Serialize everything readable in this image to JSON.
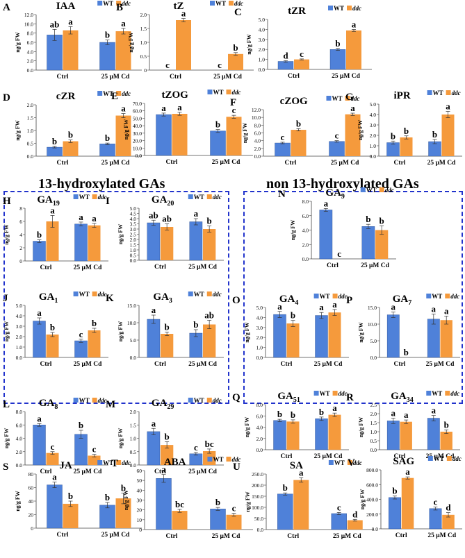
{
  "legend": {
    "wt": "WT",
    "ddc": "ddc"
  },
  "groups": [
    "Ctrl",
    "25 μM Cd"
  ],
  "ylabel": "ng/g FW",
  "colors": {
    "wt": "#4f81d9",
    "ddc": "#f59a3c",
    "error": "#333333",
    "box": "#2233cc"
  },
  "section_titles": {
    "left": "13-hydroxylated GAs",
    "right": "non 13-hydroxylated GAs"
  },
  "chart_data": [
    {
      "type": "bar",
      "panel": "A",
      "title": "IAA",
      "ticks": [
        "0.0",
        "2.0",
        "4.0",
        "6.0",
        "8.0",
        "10.0",
        "12.0"
      ],
      "ylim": [
        0,
        12
      ],
      "series": [
        {
          "name": "WT",
          "values": [
            7.6,
            6.0
          ],
          "errors": [
            1.2,
            0.5
          ],
          "letters": [
            "ab",
            "b"
          ]
        },
        {
          "name": "ddc",
          "values": [
            8.6,
            8.4
          ],
          "errors": [
            0.8,
            0.6
          ],
          "letters": [
            "a",
            "a"
          ]
        }
      ]
    },
    {
      "type": "bar",
      "panel": "B",
      "title": "tZ",
      "ticks": [
        "0",
        "0.5",
        "1.0",
        "1.5",
        "2.0"
      ],
      "ylim": [
        0,
        2
      ],
      "series": [
        {
          "name": "WT",
          "values": [
            0,
            0
          ],
          "errors": [
            0,
            0
          ],
          "letters": [
            "c",
            "c"
          ]
        },
        {
          "name": "ddc",
          "values": [
            1.8,
            0.58
          ],
          "errors": [
            0.06,
            0.05
          ],
          "letters": [
            "a",
            "b"
          ]
        }
      ]
    },
    {
      "type": "bar",
      "panel": "C",
      "title": "tZR",
      "ticks": [
        "0.0",
        "1.0",
        "2.0",
        "3.0",
        "4.0",
        "5.0"
      ],
      "ylim": [
        0,
        5
      ],
      "series": [
        {
          "name": "WT",
          "values": [
            0.8,
            2.0
          ],
          "errors": [
            0.08,
            0.1
          ],
          "letters": [
            "d",
            "b"
          ]
        },
        {
          "name": "ddc",
          "values": [
            1.0,
            3.9
          ],
          "errors": [
            0.05,
            0.1
          ],
          "letters": [
            "c",
            "a"
          ]
        }
      ]
    },
    {
      "type": "bar",
      "panel": "D",
      "title": "cZR",
      "ticks": [
        "0.0",
        "0.5",
        "1.0",
        "1.5",
        "2.0"
      ],
      "ylim": [
        0,
        2
      ],
      "series": [
        {
          "name": "WT",
          "values": [
            0.35,
            0.48
          ],
          "errors": [
            0.03,
            0.03
          ],
          "letters": [
            "b",
            "b"
          ]
        },
        {
          "name": "ddc",
          "values": [
            0.58,
            1.58
          ],
          "errors": [
            0.05,
            0.08
          ],
          "letters": [
            "b",
            "a"
          ]
        }
      ]
    },
    {
      "type": "bar",
      "panel": "E",
      "title": "tZOG",
      "ticks": [
        "0.0",
        "10.0",
        "20.0",
        "30.0",
        "40.0",
        "50.0",
        "60.0",
        "70.0"
      ],
      "ylim": [
        0,
        70
      ],
      "series": [
        {
          "name": "WT",
          "values": [
            55,
            33
          ],
          "errors": [
            2,
            2
          ],
          "letters": [
            "a",
            "b"
          ]
        },
        {
          "name": "ddc",
          "values": [
            56,
            52
          ],
          "errors": [
            2,
            2
          ],
          "letters": [
            "a",
            "c"
          ]
        }
      ]
    },
    {
      "type": "bar",
      "panel": "F",
      "title": "cZOG",
      "ticks": [
        "0.0",
        "2.0",
        "4.0",
        "6.0",
        "8.0",
        "10.0",
        "12.0"
      ],
      "ylim": [
        0,
        12
      ],
      "series": [
        {
          "name": "WT",
          "values": [
            3.4,
            3.8
          ],
          "errors": [
            0.2,
            0.2
          ],
          "letters": [
            "c",
            "c"
          ]
        },
        {
          "name": "ddc",
          "values": [
            6.8,
            10.8
          ],
          "errors": [
            0.3,
            0.3
          ],
          "letters": [
            "b",
            "a"
          ]
        }
      ]
    },
    {
      "type": "bar",
      "panel": "G",
      "title": "iPR",
      "ticks": [
        "0.0",
        "1.0",
        "2.0",
        "3.0",
        "4.0",
        "5.0"
      ],
      "ylim": [
        0,
        5
      ],
      "series": [
        {
          "name": "WT",
          "values": [
            1.3,
            1.4
          ],
          "errors": [
            0.15,
            0.2
          ],
          "letters": [
            "b",
            "b"
          ]
        },
        {
          "name": "ddc",
          "values": [
            1.8,
            4.0
          ],
          "errors": [
            0.15,
            0.3
          ],
          "letters": [
            "b",
            "a"
          ]
        }
      ]
    },
    {
      "type": "bar",
      "panel": "H",
      "title": "GA",
      "sub": "19",
      "ticks": [
        "0",
        "2",
        "4",
        "6",
        "8"
      ],
      "ylim": [
        0,
        8
      ],
      "series": [
        {
          "name": "WT",
          "values": [
            3.0,
            5.6
          ],
          "errors": [
            0.2,
            0.3
          ],
          "letters": [
            "b",
            "a"
          ]
        },
        {
          "name": "ddc",
          "values": [
            6.0,
            5.4
          ],
          "errors": [
            0.9,
            0.3
          ],
          "letters": [
            "a",
            "a"
          ]
        }
      ]
    },
    {
      "type": "bar",
      "panel": "I",
      "title": "GA",
      "sub": "20",
      "ticks": [
        "0.0",
        "0.5",
        "1.0",
        "1.5",
        "2.0",
        "2.5",
        "3.0",
        "3.5",
        "4.0",
        "4.5",
        "5.0"
      ],
      "ylim": [
        0,
        5
      ],
      "series": [
        {
          "name": "WT",
          "values": [
            3.6,
            3.7
          ],
          "errors": [
            0.25,
            0.3
          ],
          "letters": [
            "ab",
            "a"
          ]
        },
        {
          "name": "ddc",
          "values": [
            3.2,
            3.0
          ],
          "errors": [
            0.3,
            0.3
          ],
          "letters": [
            "ab",
            "b"
          ]
        }
      ]
    },
    {
      "type": "bar",
      "panel": "J",
      "title": "GA",
      "sub": "1",
      "ticks": [
        "0.0",
        "1.0",
        "2.0",
        "3.0",
        "4.0",
        "5.0"
      ],
      "ylim": [
        0,
        5
      ],
      "series": [
        {
          "name": "WT",
          "values": [
            3.5,
            1.6
          ],
          "errors": [
            0.3,
            0.15
          ],
          "letters": [
            "a",
            "c"
          ]
        },
        {
          "name": "ddc",
          "values": [
            2.2,
            2.6
          ],
          "errors": [
            0.2,
            0.2
          ],
          "letters": [
            "b",
            "b"
          ]
        }
      ]
    },
    {
      "type": "bar",
      "panel": "K",
      "title": "GA",
      "sub": "3",
      "ticks": [
        "0.0",
        "5.0",
        "10.0",
        "15.0"
      ],
      "ylim": [
        0,
        15
      ],
      "series": [
        {
          "name": "WT",
          "values": [
            11.0,
            7.0
          ],
          "errors": [
            1.2,
            1.0
          ],
          "letters": [
            "a",
            "b"
          ]
        },
        {
          "name": "ddc",
          "values": [
            6.8,
            9.5
          ],
          "errors": [
            0.5,
            1.2
          ],
          "letters": [
            "b",
            "ab"
          ]
        }
      ]
    },
    {
      "type": "bar",
      "panel": "L",
      "title": "GA",
      "sub": "8",
      "ticks": [
        "0.0",
        "2.0",
        "4.0",
        "6.0",
        "8.0"
      ],
      "ylim": [
        0,
        8
      ],
      "series": [
        {
          "name": "WT",
          "values": [
            6.0,
            4.6
          ],
          "errors": [
            0.2,
            0.6
          ],
          "letters": [
            "a",
            "b"
          ]
        },
        {
          "name": "ddc",
          "values": [
            1.8,
            1.4
          ],
          "errors": [
            0.2,
            0.2
          ],
          "letters": [
            "c",
            "c"
          ]
        }
      ]
    },
    {
      "type": "bar",
      "panel": "M",
      "title": "GA",
      "sub": "29",
      "ticks": [
        "0.0",
        "0.5",
        "1.0",
        "1.5",
        "2.0"
      ],
      "ylim": [
        0,
        2
      ],
      "series": [
        {
          "name": "WT",
          "values": [
            1.25,
            0.42
          ],
          "errors": [
            0.12,
            0.05
          ],
          "letters": [
            "a",
            "c"
          ]
        },
        {
          "name": "ddc",
          "values": [
            0.75,
            0.52
          ],
          "errors": [
            0.12,
            0.08
          ],
          "letters": [
            "b",
            "bc"
          ]
        }
      ]
    },
    {
      "type": "bar",
      "panel": "N",
      "title": "GA",
      "sub": "9",
      "ticks": [
        "0.0",
        "2.0",
        "4.0",
        "6.0",
        "8.0"
      ],
      "ylim": [
        0,
        8
      ],
      "series": [
        {
          "name": "WT",
          "values": [
            6.8,
            4.5
          ],
          "errors": [
            0.2,
            0.3
          ],
          "letters": [
            "a",
            "b"
          ]
        },
        {
          "name": "ddc",
          "values": [
            0,
            4.0
          ],
          "errors": [
            0,
            0.6
          ],
          "letters": [
            "c",
            "b"
          ]
        }
      ]
    },
    {
      "type": "bar",
      "panel": "O",
      "title": "GA",
      "sub": "4",
      "ticks": [
        "0.0",
        "1.0",
        "2.0",
        "3.0",
        "4.0",
        "5.0"
      ],
      "ylim": [
        0,
        5
      ],
      "series": [
        {
          "name": "WT",
          "values": [
            4.3,
            4.2
          ],
          "errors": [
            0.3,
            0.3
          ],
          "letters": [
            "a",
            "a"
          ]
        },
        {
          "name": "ddc",
          "values": [
            3.4,
            4.5
          ],
          "errors": [
            0.3,
            0.3
          ],
          "letters": [
            "b",
            "a"
          ]
        }
      ]
    },
    {
      "type": "bar",
      "panel": "P",
      "title": "GA",
      "sub": "7",
      "ticks": [
        "0.0",
        "5.0",
        "10.0",
        "15.0"
      ],
      "ylim": [
        0,
        15
      ],
      "series": [
        {
          "name": "WT",
          "values": [
            12.8,
            11.5
          ],
          "errors": [
            0.8,
            1.5
          ],
          "letters": [
            "a",
            "a"
          ]
        },
        {
          "name": "ddc",
          "values": [
            0,
            11.2
          ],
          "errors": [
            0,
            1.2
          ],
          "letters": [
            "b",
            "a"
          ]
        }
      ]
    },
    {
      "type": "bar",
      "panel": "Q",
      "title": "GA",
      "sub": "51",
      "ticks": [
        "0.0",
        "2.0",
        "4.0",
        "6.0",
        "8.0"
      ],
      "ylim": [
        0,
        8
      ],
      "series": [
        {
          "name": "WT",
          "values": [
            5.2,
            5.5
          ],
          "errors": [
            0.2,
            0.3
          ],
          "letters": [
            "b",
            "b"
          ]
        },
        {
          "name": "ddc",
          "values": [
            5.0,
            6.2
          ],
          "errors": [
            0.3,
            0.3
          ],
          "letters": [
            "b",
            "a"
          ]
        }
      ]
    },
    {
      "type": "bar",
      "panel": "R",
      "title": "GA",
      "sub": "34",
      "ticks": [
        "0.0",
        "0.5",
        "1.0",
        "1.5",
        "2.0",
        "2.5"
      ],
      "ylim": [
        0,
        2.5
      ],
      "series": [
        {
          "name": "WT",
          "values": [
            1.6,
            1.75
          ],
          "errors": [
            0.15,
            0.15
          ],
          "letters": [
            "a",
            "a"
          ]
        },
        {
          "name": "ddc",
          "values": [
            1.55,
            1.0
          ],
          "errors": [
            0.1,
            0.1
          ],
          "letters": [
            "a",
            "b"
          ]
        }
      ]
    },
    {
      "type": "bar",
      "panel": "S",
      "title": "JA",
      "ticks": [
        "0",
        "20",
        "40",
        "60",
        "80"
      ],
      "ylim": [
        0,
        80
      ],
      "series": [
        {
          "name": "WT",
          "values": [
            64,
            34
          ],
          "errors": [
            4,
            4
          ],
          "letters": [
            "a",
            "b"
          ]
        },
        {
          "name": "ddc",
          "values": [
            36,
            44
          ],
          "errors": [
            4,
            8
          ],
          "letters": [
            "b",
            "b"
          ]
        }
      ]
    },
    {
      "type": "bar",
      "panel": "T",
      "title": "ABA",
      "ticks": [
        "0",
        "10",
        "20",
        "30",
        "40",
        "50",
        "60"
      ],
      "ylim": [
        0,
        60
      ],
      "series": [
        {
          "name": "WT",
          "values": [
            52,
            21
          ],
          "errors": [
            4,
            1.5
          ],
          "letters": [
            "a",
            "b"
          ]
        },
        {
          "name": "ddc",
          "values": [
            19,
            15
          ],
          "errors": [
            1.5,
            1.5
          ],
          "letters": [
            "bc",
            "c"
          ]
        }
      ]
    },
    {
      "type": "bar",
      "panel": "U",
      "title": "SA",
      "ticks": [
        "0.0",
        "50.0",
        "100.0",
        "150.0",
        "200.0",
        "250.0"
      ],
      "ylim": [
        0,
        250
      ],
      "series": [
        {
          "name": "WT",
          "values": [
            160,
            72
          ],
          "errors": [
            5,
            5
          ],
          "letters": [
            "b",
            "c"
          ]
        },
        {
          "name": "ddc",
          "values": [
            223,
            42
          ],
          "errors": [
            10,
            4
          ],
          "letters": [
            "a",
            "d"
          ]
        }
      ]
    },
    {
      "type": "bar",
      "panel": "V",
      "title": "SAG",
      "ticks": [
        "0.0",
        "200.0",
        "400.0",
        "600.0",
        "800.0"
      ],
      "ylim": [
        0,
        800
      ],
      "series": [
        {
          "name": "WT",
          "values": [
            425,
            275
          ],
          "errors": [
            20,
            20
          ],
          "letters": [
            "b",
            "c"
          ]
        },
        {
          "name": "ddc",
          "values": [
            690,
            190
          ],
          "errors": [
            15,
            30
          ],
          "letters": [
            "a",
            "d"
          ]
        }
      ]
    }
  ]
}
